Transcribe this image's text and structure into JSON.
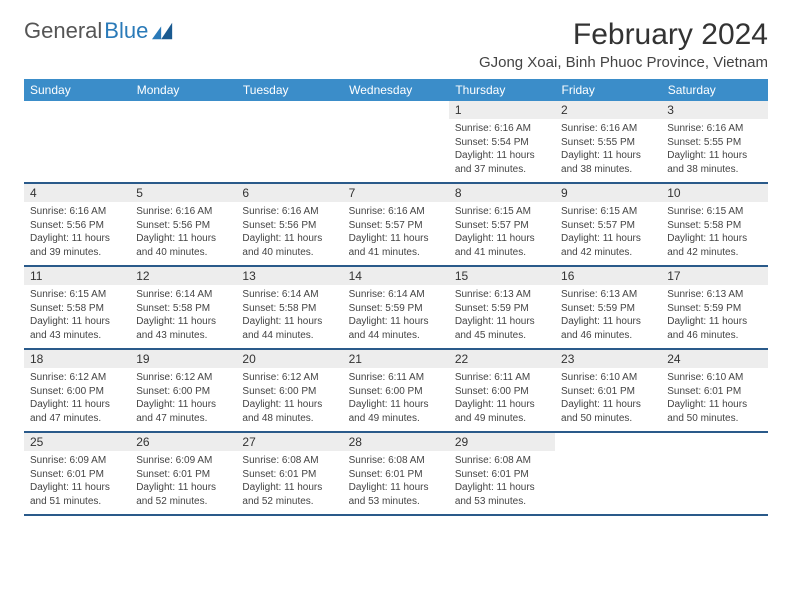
{
  "brand": {
    "part1": "General",
    "part2": "Blue"
  },
  "title": "February 2024",
  "location": "GJong Xoai, Binh Phuoc Province, Vietnam",
  "colors": {
    "header_bg": "#3b8dc9",
    "row_border": "#2a5a8a",
    "daynum_bg": "#ededed",
    "brand_blue": "#2a7ab8"
  },
  "day_headers": [
    "Sunday",
    "Monday",
    "Tuesday",
    "Wednesday",
    "Thursday",
    "Friday",
    "Saturday"
  ],
  "weeks": [
    [
      null,
      null,
      null,
      null,
      {
        "n": "1",
        "sr": "6:16 AM",
        "ss": "5:54 PM",
        "dl": "11 hours and 37 minutes."
      },
      {
        "n": "2",
        "sr": "6:16 AM",
        "ss": "5:55 PM",
        "dl": "11 hours and 38 minutes."
      },
      {
        "n": "3",
        "sr": "6:16 AM",
        "ss": "5:55 PM",
        "dl": "11 hours and 38 minutes."
      }
    ],
    [
      {
        "n": "4",
        "sr": "6:16 AM",
        "ss": "5:56 PM",
        "dl": "11 hours and 39 minutes."
      },
      {
        "n": "5",
        "sr": "6:16 AM",
        "ss": "5:56 PM",
        "dl": "11 hours and 40 minutes."
      },
      {
        "n": "6",
        "sr": "6:16 AM",
        "ss": "5:56 PM",
        "dl": "11 hours and 40 minutes."
      },
      {
        "n": "7",
        "sr": "6:16 AM",
        "ss": "5:57 PM",
        "dl": "11 hours and 41 minutes."
      },
      {
        "n": "8",
        "sr": "6:15 AM",
        "ss": "5:57 PM",
        "dl": "11 hours and 41 minutes."
      },
      {
        "n": "9",
        "sr": "6:15 AM",
        "ss": "5:57 PM",
        "dl": "11 hours and 42 minutes."
      },
      {
        "n": "10",
        "sr": "6:15 AM",
        "ss": "5:58 PM",
        "dl": "11 hours and 42 minutes."
      }
    ],
    [
      {
        "n": "11",
        "sr": "6:15 AM",
        "ss": "5:58 PM",
        "dl": "11 hours and 43 minutes."
      },
      {
        "n": "12",
        "sr": "6:14 AM",
        "ss": "5:58 PM",
        "dl": "11 hours and 43 minutes."
      },
      {
        "n": "13",
        "sr": "6:14 AM",
        "ss": "5:58 PM",
        "dl": "11 hours and 44 minutes."
      },
      {
        "n": "14",
        "sr": "6:14 AM",
        "ss": "5:59 PM",
        "dl": "11 hours and 44 minutes."
      },
      {
        "n": "15",
        "sr": "6:13 AM",
        "ss": "5:59 PM",
        "dl": "11 hours and 45 minutes."
      },
      {
        "n": "16",
        "sr": "6:13 AM",
        "ss": "5:59 PM",
        "dl": "11 hours and 46 minutes."
      },
      {
        "n": "17",
        "sr": "6:13 AM",
        "ss": "5:59 PM",
        "dl": "11 hours and 46 minutes."
      }
    ],
    [
      {
        "n": "18",
        "sr": "6:12 AM",
        "ss": "6:00 PM",
        "dl": "11 hours and 47 minutes."
      },
      {
        "n": "19",
        "sr": "6:12 AM",
        "ss": "6:00 PM",
        "dl": "11 hours and 47 minutes."
      },
      {
        "n": "20",
        "sr": "6:12 AM",
        "ss": "6:00 PM",
        "dl": "11 hours and 48 minutes."
      },
      {
        "n": "21",
        "sr": "6:11 AM",
        "ss": "6:00 PM",
        "dl": "11 hours and 49 minutes."
      },
      {
        "n": "22",
        "sr": "6:11 AM",
        "ss": "6:00 PM",
        "dl": "11 hours and 49 minutes."
      },
      {
        "n": "23",
        "sr": "6:10 AM",
        "ss": "6:01 PM",
        "dl": "11 hours and 50 minutes."
      },
      {
        "n": "24",
        "sr": "6:10 AM",
        "ss": "6:01 PM",
        "dl": "11 hours and 50 minutes."
      }
    ],
    [
      {
        "n": "25",
        "sr": "6:09 AM",
        "ss": "6:01 PM",
        "dl": "11 hours and 51 minutes."
      },
      {
        "n": "26",
        "sr": "6:09 AM",
        "ss": "6:01 PM",
        "dl": "11 hours and 52 minutes."
      },
      {
        "n": "27",
        "sr": "6:08 AM",
        "ss": "6:01 PM",
        "dl": "11 hours and 52 minutes."
      },
      {
        "n": "28",
        "sr": "6:08 AM",
        "ss": "6:01 PM",
        "dl": "11 hours and 53 minutes."
      },
      {
        "n": "29",
        "sr": "6:08 AM",
        "ss": "6:01 PM",
        "dl": "11 hours and 53 minutes."
      },
      null,
      null
    ]
  ],
  "labels": {
    "sunrise": "Sunrise:",
    "sunset": "Sunset:",
    "daylight": "Daylight:"
  }
}
